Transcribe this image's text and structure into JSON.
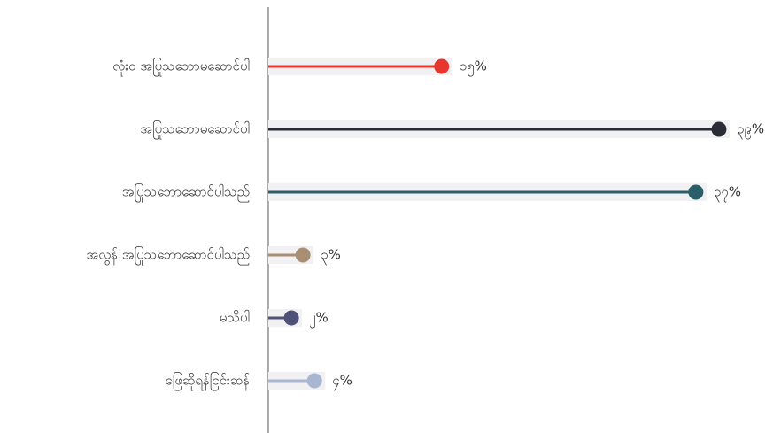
{
  "chart_data": {
    "type": "lollipop",
    "categories": [
      "လုံးဝ အပြုသဘောမဆောင်ပါ",
      "အပြုသဘောမဆောင်ပါ",
      "အပြုသဘောဆောင်ပါသည်",
      "အလွန် အပြုသဘောဆောင်ပါသည်",
      "မသိပါ",
      "ဖြေဆိုရန်ငြင်းဆန်"
    ],
    "values": [
      15,
      39,
      37,
      3,
      2,
      4
    ],
    "value_labels": [
      "၁၅%",
      "၃၉%",
      "၃၇%",
      "၃%",
      "၂%",
      "၄%"
    ],
    "colors": [
      "#e8352e",
      "#2a2d36",
      "#2a5f6a",
      "#a88f74",
      "#4f5178",
      "#a9b6d1"
    ],
    "xlim": [
      0,
      40
    ]
  }
}
